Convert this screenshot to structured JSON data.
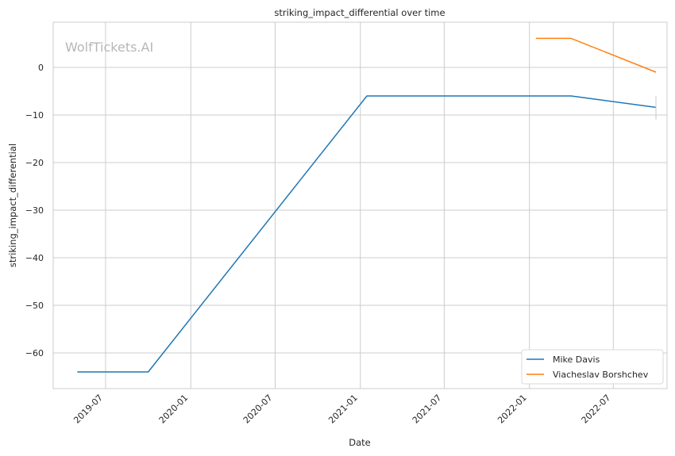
{
  "chart_data": {
    "type": "line",
    "title": "striking_impact_differential over time",
    "xlabel": "Date",
    "ylabel": "striking_impact_differential",
    "watermark": "WolfTickets.AI",
    "x_ticks": [
      "2019-07",
      "2020-01",
      "2020-07",
      "2021-01",
      "2021-07",
      "2022-01",
      "2022-07"
    ],
    "y_ticks": [
      0,
      -10,
      -20,
      -30,
      -40,
      -50,
      -60
    ],
    "xlim": [
      "2019-03-10",
      "2022-10-25"
    ],
    "ylim": [
      -67.5,
      9.5
    ],
    "grid": true,
    "legend_position": "bottom-right",
    "series": [
      {
        "name": "Mike Davis",
        "color": "#1f77b4",
        "points": [
          {
            "x": "2019-05-01",
            "y": -64
          },
          {
            "x": "2019-10-01",
            "y": -64
          },
          {
            "x": "2021-01-15",
            "y": -6
          },
          {
            "x": "2022-04-01",
            "y": -6
          },
          {
            "x": "2022-10-01",
            "y": -8.4
          }
        ],
        "error_bar": {
          "x": "2022-10-01",
          "low": -11,
          "high": -6
        }
      },
      {
        "name": "Viacheslav Borshchev",
        "color": "#ff7f0e",
        "points": [
          {
            "x": "2022-01-15",
            "y": 6.1
          },
          {
            "x": "2022-04-01",
            "y": 6.1
          },
          {
            "x": "2022-10-01",
            "y": -1
          }
        ]
      }
    ]
  }
}
